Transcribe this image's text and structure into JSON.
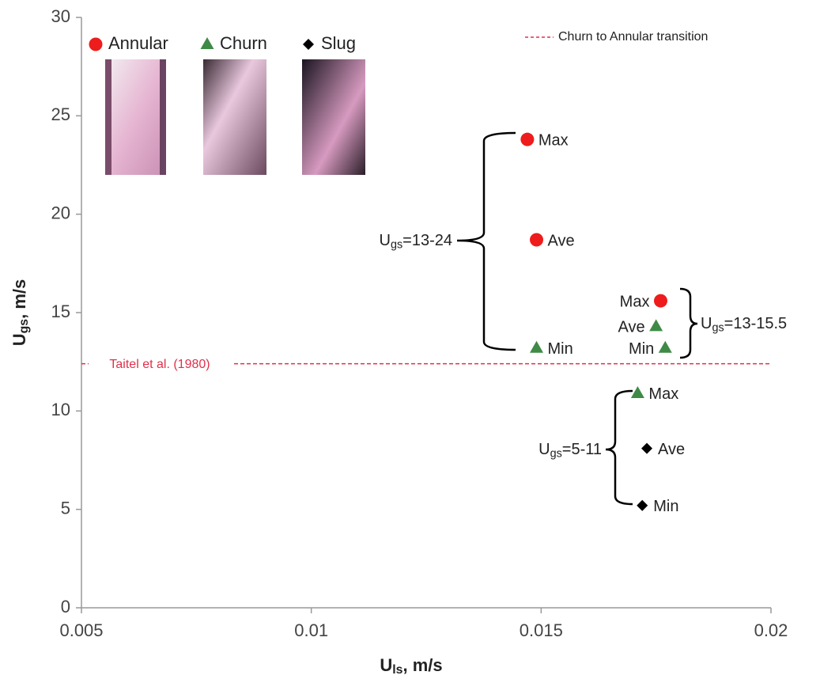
{
  "chart_data": {
    "type": "scatter",
    "xlabel": [
      "U",
      "ls",
      ", m/s"
    ],
    "ylabel": [
      "U",
      "gs",
      ", m/s"
    ],
    "xlim": [
      0.005,
      0.02
    ],
    "xticks": [
      0.005,
      0.01,
      0.015,
      0.02
    ],
    "ylim": [
      0,
      30
    ],
    "yticks": [
      0,
      5,
      10,
      15,
      20,
      25,
      30
    ],
    "grid": false,
    "series": [
      {
        "name": "Annular",
        "color": "#ee1c1c",
        "marker": "circle",
        "x": [
          0.0147,
          0.0149,
          0.0176
        ],
        "values": [
          23.8,
          18.7,
          15.6
        ],
        "point_labels": [
          "Max",
          "Ave",
          "Max"
        ]
      },
      {
        "name": "Churn",
        "color": "#3f8a46",
        "marker": "triangle",
        "x": [
          0.0149,
          0.0175,
          0.0177,
          0.0171
        ],
        "values": [
          13.2,
          14.3,
          13.2,
          10.9
        ],
        "point_labels": [
          "Min",
          "Ave",
          "Min",
          "Max"
        ]
      },
      {
        "name": "Slug",
        "color": "#000000",
        "marker": "diamond",
        "x": [
          0.0173,
          0.0172
        ],
        "values": [
          8.1,
          5.2
        ],
        "point_labels": [
          "Ave",
          "Min"
        ]
      }
    ],
    "reference_line": {
      "value": 12.4,
      "label": "Taitel et al. (1980)",
      "legend": "Churn to Annular transition",
      "color": "#e0304a"
    },
    "annotations": [
      {
        "text": [
          "U",
          "gs",
          "=13-24"
        ]
      },
      {
        "text": [
          "U",
          "gs",
          "=13-15.5"
        ]
      },
      {
        "text": [
          "U",
          "gs",
          "=5-11"
        ]
      }
    ]
  }
}
